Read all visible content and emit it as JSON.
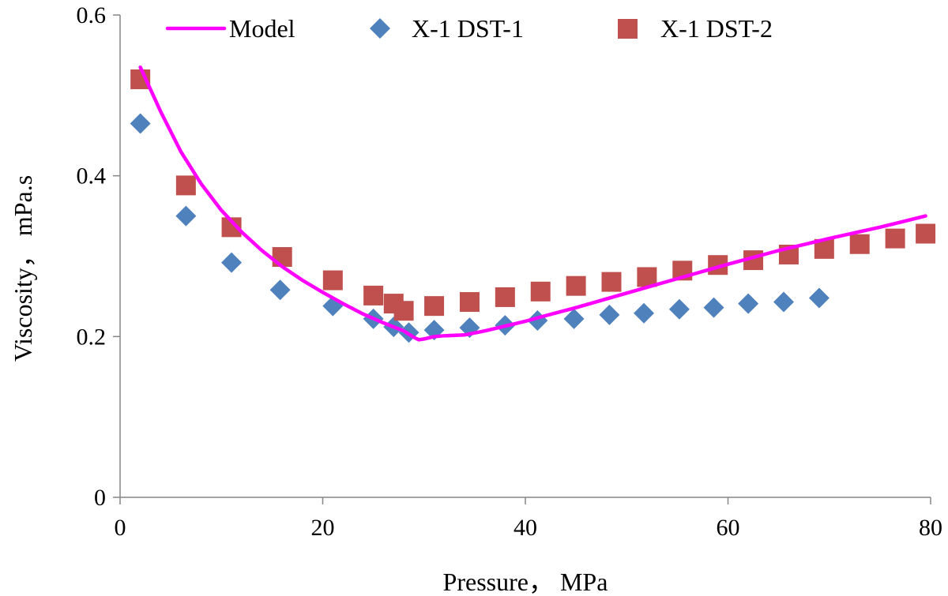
{
  "chart_data": {
    "type": "scatter",
    "title": "",
    "xlabel": "Pressure，  MPa",
    "ylabel": "Viscosity，  mPa.s",
    "xlim": [
      0,
      80
    ],
    "ylim": [
      0,
      0.6
    ],
    "x_ticks": [
      "0",
      "20",
      "40",
      "60",
      "80"
    ],
    "y_ticks": [
      "0",
      "0.2",
      "0.4",
      "0.6"
    ],
    "grid": false,
    "legend_position": "top",
    "series": [
      {
        "name": "Model",
        "kind": "line",
        "color": "#ff00ff",
        "x": [
          2,
          4,
          6,
          8,
          10,
          12,
          14,
          16,
          18,
          20,
          22,
          24,
          26,
          27,
          28,
          29,
          29.5,
          30,
          31,
          32,
          34,
          36,
          38,
          40,
          42,
          45,
          50,
          55,
          60,
          65,
          70,
          75,
          79.5
        ],
        "y": [
          0.535,
          0.48,
          0.43,
          0.39,
          0.357,
          0.33,
          0.307,
          0.287,
          0.27,
          0.255,
          0.241,
          0.228,
          0.217,
          0.212,
          0.207,
          0.199,
          0.196,
          0.197,
          0.2,
          0.201,
          0.202,
          0.207,
          0.213,
          0.219,
          0.226,
          0.236,
          0.254,
          0.272,
          0.29,
          0.307,
          0.322,
          0.336,
          0.35
        ]
      },
      {
        "name": "X-1 DST-1",
        "kind": "marker",
        "marker": "diamond",
        "color": "#4f81bd",
        "x": [
          2,
          6.5,
          11,
          15.8,
          21,
          25,
          27,
          28.5,
          31,
          34.5,
          38,
          41.2,
          44.8,
          48.3,
          51.7,
          55.2,
          58.6,
          62,
          65.5,
          69
        ],
        "y": [
          0.465,
          0.35,
          0.292,
          0.258,
          0.238,
          0.222,
          0.212,
          0.205,
          0.208,
          0.211,
          0.214,
          0.22,
          0.222,
          0.227,
          0.229,
          0.234,
          0.236,
          0.241,
          0.243,
          0.248
        ]
      },
      {
        "name": "X-1 DST-2",
        "kind": "marker",
        "marker": "square",
        "color": "#c0504d",
        "x": [
          2,
          6.5,
          11,
          16,
          21,
          25,
          27,
          28,
          31,
          34.5,
          38,
          41.5,
          45,
          48.5,
          52,
          55.5,
          59,
          62.5,
          66,
          69.5,
          73,
          76.5,
          79.5
        ],
        "y": [
          0.52,
          0.388,
          0.336,
          0.299,
          0.27,
          0.251,
          0.241,
          0.232,
          0.238,
          0.243,
          0.249,
          0.256,
          0.263,
          0.268,
          0.274,
          0.282,
          0.289,
          0.295,
          0.302,
          0.309,
          0.315,
          0.322,
          0.328
        ]
      }
    ]
  }
}
